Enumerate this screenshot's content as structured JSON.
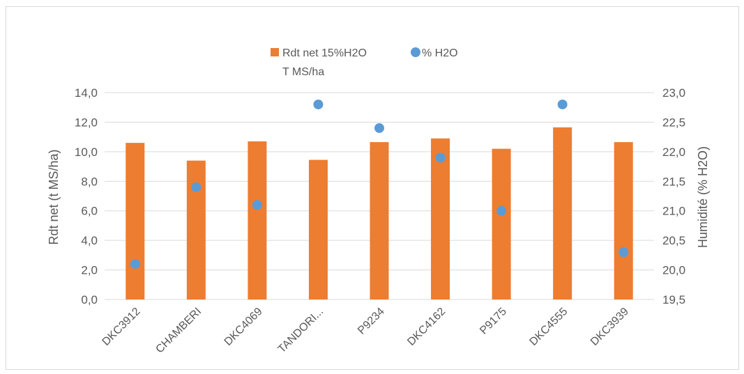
{
  "chart_data": {
    "type": "bar",
    "categories": [
      "DKC3912",
      "CHAMBERI",
      "DKC4069",
      "TANDORI...",
      "P9234",
      "DKC4162",
      "P9175",
      "DKC4555",
      "DKC3939"
    ],
    "series": [
      {
        "name": "Rdt net 15%H2O T MS/ha",
        "name_lines": [
          "Rdt net 15%H2O",
          "T MS/ha"
        ],
        "type": "bar",
        "axis": "left",
        "color": "#ED7D31",
        "values": [
          10.6,
          9.4,
          10.7,
          9.45,
          10.65,
          10.9,
          10.2,
          11.65,
          10.65
        ]
      },
      {
        "name": "% H2O",
        "type": "scatter",
        "axis": "right",
        "color": "#5B9BD5",
        "values": [
          20.1,
          21.4,
          21.1,
          22.8,
          22.4,
          21.9,
          21.0,
          22.8,
          20.3
        ]
      }
    ],
    "ylabel": "Rdt net (t MS/ha)",
    "y2label": "Humidité (% H2O)",
    "ylim": [
      0,
      14
    ],
    "y2lim": [
      19.5,
      23
    ],
    "yticks": [
      "0,0",
      "2,0",
      "4,0",
      "6,0",
      "8,0",
      "10,0",
      "12,0",
      "14,0"
    ],
    "y2ticks": [
      "19,5",
      "20,0",
      "20,5",
      "21,0",
      "21,5",
      "22,0",
      "22,5",
      "23,0"
    ],
    "grid": true,
    "legend_position": "top"
  }
}
